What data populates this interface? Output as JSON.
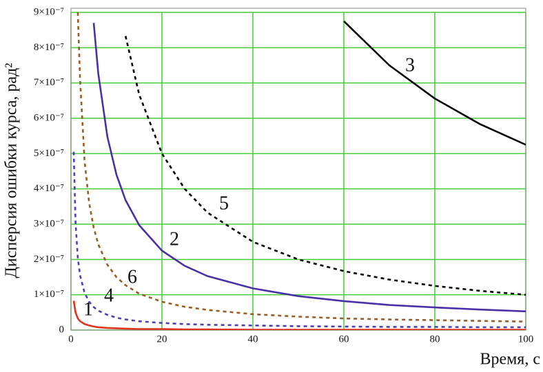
{
  "chart_data": {
    "type": "line",
    "xlabel": "Время, с",
    "ylabel": "Дисперсия ошибки курса, рад²",
    "x": [
      0.6,
      1,
      1.5,
      2,
      3,
      4,
      5,
      6,
      8,
      10,
      12,
      15,
      20,
      25,
      30,
      40,
      50,
      60,
      70,
      80,
      90,
      100
    ],
    "series": [
      {
        "name": "1",
        "color": "#e0321e",
        "dashed": false,
        "values": [
          8.3e-08,
          5e-08,
          3.3e-08,
          2.5e-08,
          1.7e-08,
          1.3e-08,
          1e-08,
          8e-09,
          6e-09,
          5e-09,
          4e-09,
          3e-09,
          3e-09,
          2e-09,
          2e-09,
          1e-09,
          1e-09,
          1e-09,
          1e-09,
          1e-09,
          1e-09,
          1e-09
        ]
      },
      {
        "name": "2",
        "color": "#4b2fa8",
        "dashed": false,
        "values": [
          null,
          null,
          null,
          null,
          null,
          null,
          8.7e-07,
          7.27e-07,
          5.48e-07,
          4.4e-07,
          3.68e-07,
          2.97e-07,
          2.25e-07,
          1.82e-07,
          1.53e-07,
          1.18e-07,
          9.6e-08,
          8.2e-08,
          7.1e-08,
          6.4e-08,
          5.8e-08,
          5.3e-08
        ]
      },
      {
        "name": "3",
        "color": "#000000",
        "dashed": false,
        "values": [
          null,
          null,
          null,
          null,
          null,
          null,
          null,
          null,
          null,
          null,
          null,
          null,
          null,
          null,
          null,
          null,
          null,
          8.75e-07,
          7.5e-07,
          6.56e-07,
          5.83e-07,
          5.25e-07
        ]
      },
      {
        "name": "4",
        "color": "#4b3fb8",
        "dashed": true,
        "values": [
          5.05e-07,
          3.05e-07,
          2.05e-07,
          1.55e-07,
          1.05e-07,
          8e-08,
          6.5e-08,
          5.5e-08,
          4.3e-08,
          3.5e-08,
          3e-08,
          2.5e-08,
          2e-08,
          1.7e-08,
          1.5e-08,
          1.3e-08,
          1.1e-08,
          1e-08,
          9e-09,
          9e-09,
          8e-09,
          8e-09
        ]
      },
      {
        "name": "5",
        "color": "#000000",
        "dashed": true,
        "values": [
          null,
          null,
          null,
          null,
          null,
          null,
          null,
          null,
          null,
          null,
          8.33e-07,
          6.67e-07,
          5e-07,
          4e-07,
          3.33e-07,
          2.5e-07,
          2e-07,
          1.67e-07,
          1.43e-07,
          1.25e-07,
          1.11e-07,
          1e-07
        ]
      },
      {
        "name": "6",
        "color": "#9c5a1e",
        "dashed": true,
        "values": [
          null,
          null,
          9e-07,
          7.1e-07,
          4.77e-07,
          3.6e-07,
          2.9e-07,
          2.43e-07,
          1.85e-07,
          1.5e-07,
          1.27e-07,
          1.03e-07,
          8e-08,
          6.6e-08,
          5.7e-08,
          4.5e-08,
          3.8e-08,
          3.3e-08,
          3e-08,
          2.8e-08,
          2.6e-08,
          2.4e-08
        ]
      }
    ],
    "xlim": [
      0,
      100
    ],
    "xticks": [
      0,
      20,
      40,
      60,
      80,
      100
    ],
    "ylim": [
      0,
      9e-07
    ],
    "yticks": [
      0,
      {
        "value": 1e-07,
        "label": "1×10⁻⁷"
      },
      {
        "value": 2e-07,
        "label": "2×10⁻⁷"
      },
      {
        "value": 3e-07,
        "label": "3×10⁻⁷"
      },
      {
        "value": 4e-07,
        "label": "4×10⁻⁷"
      },
      {
        "value": 5e-07,
        "label": "5×10⁻⁷"
      },
      {
        "value": 6e-07,
        "label": "6×10⁻⁷"
      },
      {
        "value": 7e-07,
        "label": "7×10⁻⁷"
      },
      {
        "value": 8e-07,
        "label": "8×10⁻⁷"
      },
      {
        "value": 9e-07,
        "label": "9×10⁻⁷"
      }
    ],
    "grid": true,
    "grid_color": "#44cc33"
  }
}
